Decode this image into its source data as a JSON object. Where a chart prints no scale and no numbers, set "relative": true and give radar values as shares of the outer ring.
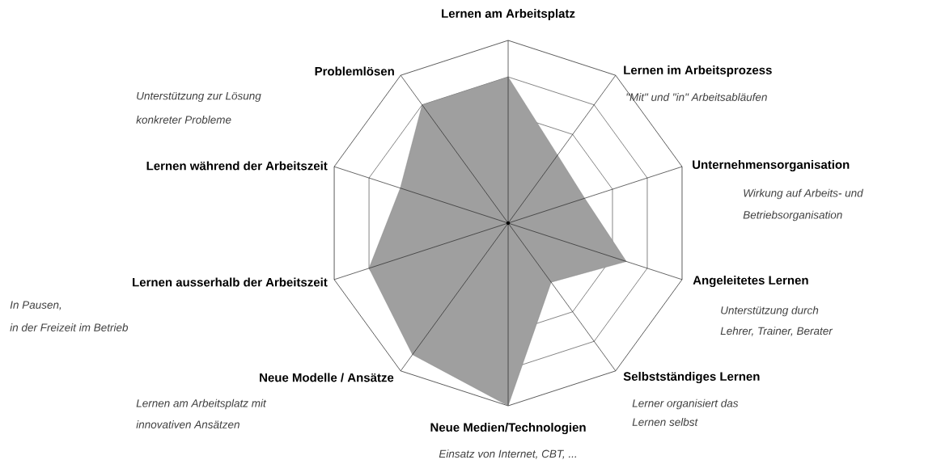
{
  "chart_data": {
    "type": "radar",
    "relative": true,
    "grid": true,
    "categories": [
      "Lernen am Arbeitsplatz",
      "Lernen im Arbeitsprozess",
      "Unternehmensorganisation",
      "Angeleitetes Lernen",
      "Selbstständiges Lernen",
      "Neue Medien/Technologien",
      "Neue Modelle / Ansätze",
      "Lernen ausserhalb der Arbeitszeit",
      "Lernen während der Arbeitszeit",
      "Problemlösen"
    ],
    "series": [
      {
        "color": "#7f7f7f",
        "values": [
          0.8,
          0.46,
          0.44,
          0.68,
          0.4,
          1.0,
          0.89,
          0.8,
          0.62,
          0.8
        ]
      }
    ],
    "annotations": [
      "\"Mit\" und \"in\" Arbeitsabläufen",
      "Wirkung auf Arbeits- und",
      "Betriebsorganisation",
      "Unterstützung durch",
      "Lehrer, Trainer, Berater",
      "Lerner organisiert das",
      "Lernen selbst",
      "Einsatz von Internet, CBT, ...",
      "Lernen am Arbeitsplatz mit",
      "innovativen Ansätzen",
      "In Pausen,",
      "in der Freizeit im Betrieb",
      "Unterstützung zur Lösung",
      "konkreter Probleme"
    ]
  }
}
